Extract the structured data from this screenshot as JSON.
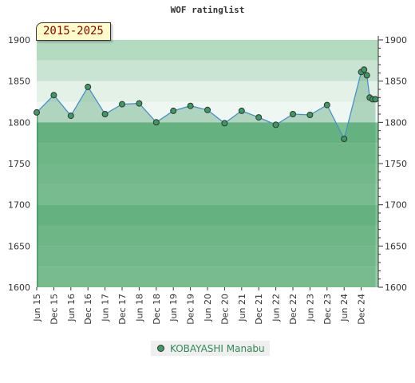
{
  "chart_data": {
    "type": "area",
    "title": "WOF ratinglist",
    "period_label": "2015-2025",
    "ylim": [
      1600,
      1900
    ],
    "yticks": [
      1600,
      1650,
      1700,
      1750,
      1800,
      1850,
      1900
    ],
    "xticks": [
      "Jun 15",
      "Dec 15",
      "Jun 16",
      "Dec 16",
      "Jun 17",
      "Dec 17",
      "Jun 18",
      "Dec 18",
      "Jun 19",
      "Dec 19",
      "Jun 20",
      "Dec 20",
      "Jun 21",
      "Dec 21",
      "Jun 22",
      "Dec 22",
      "Jun 23",
      "Dec 23",
      "Jun 24",
      "Dec 24"
    ],
    "series": [
      {
        "name": "KOBAYASHI Manabu",
        "color": "#4a90c8",
        "marker_color": "#3d9a62",
        "points": [
          {
            "x": "2015-06",
            "y": 1812
          },
          {
            "x": "2015-12",
            "y": 1833
          },
          {
            "x": "2016-06",
            "y": 1808
          },
          {
            "x": "2016-12",
            "y": 1843
          },
          {
            "x": "2017-06",
            "y": 1810
          },
          {
            "x": "2017-12",
            "y": 1822
          },
          {
            "x": "2018-06",
            "y": 1823
          },
          {
            "x": "2018-12",
            "y": 1800
          },
          {
            "x": "2019-06",
            "y": 1814
          },
          {
            "x": "2019-12",
            "y": 1820
          },
          {
            "x": "2020-06",
            "y": 1815
          },
          {
            "x": "2020-12",
            "y": 1799
          },
          {
            "x": "2021-06",
            "y": 1814
          },
          {
            "x": "2021-12",
            "y": 1806
          },
          {
            "x": "2022-06",
            "y": 1797
          },
          {
            "x": "2022-12",
            "y": 1810
          },
          {
            "x": "2023-06",
            "y": 1809
          },
          {
            "x": "2023-12",
            "y": 1821
          },
          {
            "x": "2024-06",
            "y": 1780
          },
          {
            "x": "2024-12",
            "y": 1861
          },
          {
            "x": "2025-01",
            "y": 1864
          },
          {
            "x": "2025-02",
            "y": 1857
          },
          {
            "x": "2025-03",
            "y": 1830
          },
          {
            "x": "2025-04",
            "y": 1828
          },
          {
            "x": "2025-05",
            "y": 1828
          }
        ]
      }
    ],
    "legend": "bottom",
    "grid": true
  }
}
